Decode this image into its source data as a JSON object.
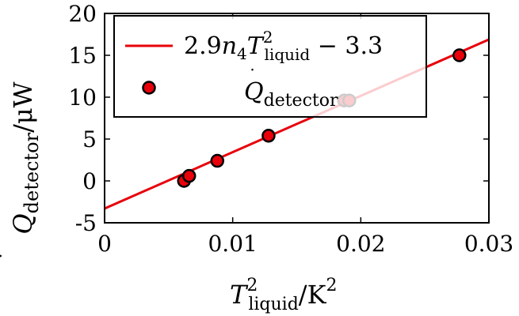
{
  "chart_data": {
    "type": "scatter",
    "title": "",
    "xlabel": {
      "base": "T",
      "sup": "2",
      "sub": "liquid",
      "unit": "/K",
      "unit_sup": "2"
    },
    "ylabel": {
      "base": "Q",
      "sub": "detector",
      "unit": "/μW"
    },
    "xlim": [
      0,
      0.03
    ],
    "ylim": [
      -5,
      20
    ],
    "xticks": [
      "0",
      "0.01",
      "0.02",
      "0.03"
    ],
    "xtick_values": [
      0,
      0.01,
      0.02,
      0.03
    ],
    "yticks": [
      "-5",
      "0",
      "5",
      "10",
      "15",
      "20"
    ],
    "ytick_values": [
      -5,
      0,
      5,
      10,
      15,
      20
    ],
    "grid": false,
    "legend_position": "top-left",
    "series": [
      {
        "kind": "line",
        "label": {
          "lead": "2.9",
          "n": "n",
          "n_sub": "4",
          "t": "T",
          "t_sup": "2",
          "t_sub": "liquid",
          "tail": " − 3.3"
        },
        "slope": 673,
        "intercept": -3.3,
        "color": "#e8000b"
      },
      {
        "kind": "scatter",
        "label": {
          "base": "Q",
          "sub": "detector"
        },
        "color": "#e8000b",
        "edge_color": "#000000",
        "x": [
          0.0062,
          0.0066,
          0.0088,
          0.0128,
          0.0187,
          0.0191,
          0.0277
        ],
        "y": [
          0.0,
          0.6,
          2.4,
          5.4,
          9.6,
          9.6,
          15.0
        ]
      }
    ]
  }
}
